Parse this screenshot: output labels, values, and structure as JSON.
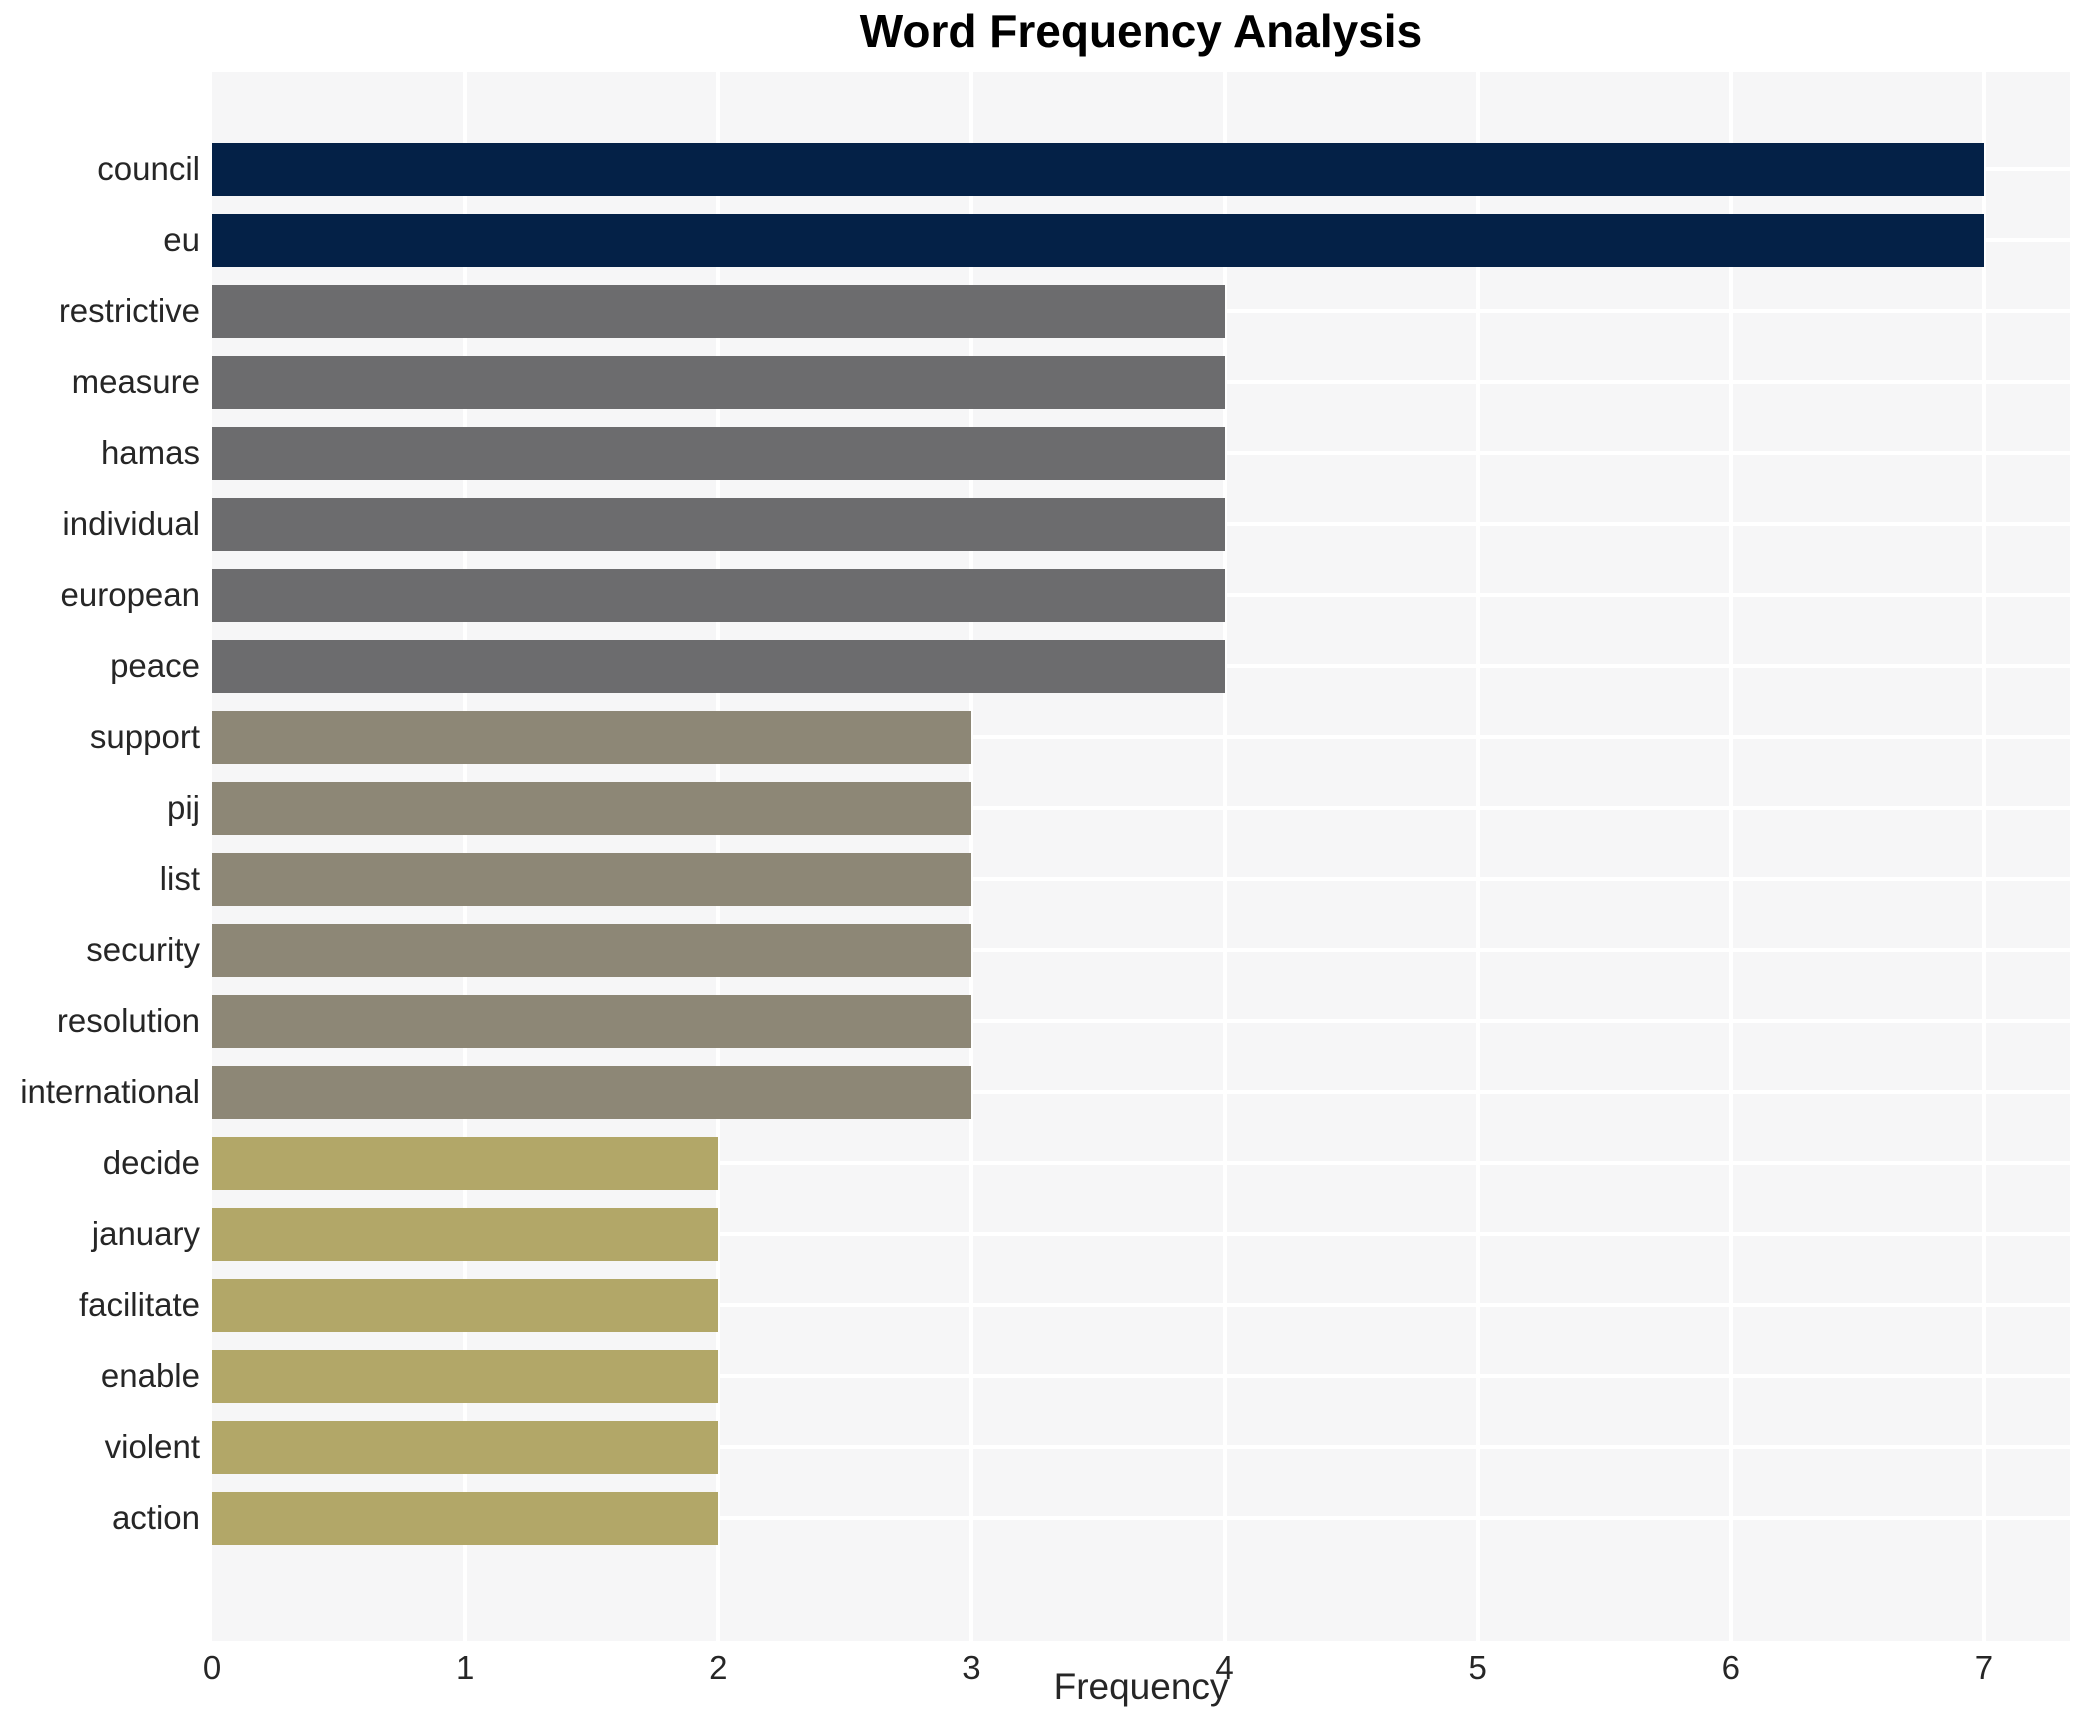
{
  "page": {
    "background": "#ffffff"
  },
  "chart_data": {
    "type": "bar",
    "orientation": "horizontal",
    "title": "Word Frequency Analysis",
    "xlabel": "Frequency",
    "ylabel": "",
    "categories": [
      "council",
      "eu",
      "restrictive",
      "measure",
      "hamas",
      "individual",
      "european",
      "peace",
      "support",
      "pij",
      "list",
      "security",
      "resolution",
      "international",
      "decide",
      "january",
      "facilitate",
      "enable",
      "violent",
      "action"
    ],
    "values": [
      7,
      7,
      4,
      4,
      4,
      4,
      4,
      4,
      3,
      3,
      3,
      3,
      3,
      3,
      2,
      2,
      2,
      2,
      2,
      2
    ],
    "bar_colors": [
      "#042147",
      "#042147",
      "#6c6c6e",
      "#6c6c6e",
      "#6c6c6e",
      "#6c6c6e",
      "#6c6c6e",
      "#6c6c6e",
      "#8d8776",
      "#8d8776",
      "#8d8776",
      "#8d8776",
      "#8d8776",
      "#8d8776",
      "#b2a768",
      "#b2a768",
      "#b2a768",
      "#b2a768",
      "#b2a768",
      "#b2a768"
    ],
    "palette_by_value": {
      "7": "#042147",
      "4": "#6c6c6e",
      "3": "#8d8776",
      "2": "#b2a768"
    },
    "xticks": [
      0,
      1,
      2,
      3,
      4,
      5,
      6,
      7
    ],
    "xlim": [
      0,
      7.34
    ],
    "grid": true,
    "grid_color": "#ffffff",
    "plot_background": "#f6f6f7",
    "text_color": "#262626",
    "legend": null
  }
}
